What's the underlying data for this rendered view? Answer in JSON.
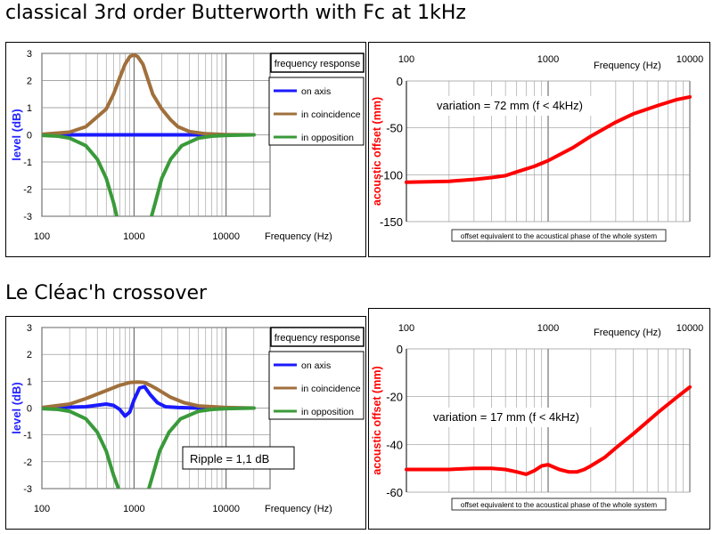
{
  "sections": [
    {
      "title": "classical 3rd order Butterworth with Fc at 1kHz",
      "annotation": "",
      "freq_chart": {
        "type": "line",
        "title": "frequency response",
        "ylabel": "level (dB)",
        "xlabel": "Frequency  (Hz)",
        "xscale": "log",
        "xlim": [
          100,
          30000
        ],
        "ylim": [
          -3,
          3
        ],
        "xticks": [
          "100",
          "1000",
          "10000"
        ],
        "yticks": [
          "3",
          "2",
          "1",
          "0",
          "-1",
          "-2",
          "-3"
        ],
        "grid": true,
        "legend_position": "top-right",
        "series": [
          {
            "name": "on axis",
            "color": "#1a1aff",
            "x": [
              100,
              200,
              500,
              1000,
              2000,
              5000,
              20000
            ],
            "y": [
              0,
              0,
              0,
              0,
              0,
              0,
              0
            ]
          },
          {
            "name": "in coincidence",
            "color": "#a0703c",
            "x": [
              100,
              200,
              300,
              500,
              600,
              700,
              800,
              900,
              1000,
              1100,
              1250,
              1400,
              1600,
              2000,
              2500,
              3000,
              4000,
              6000,
              10000,
              20000
            ],
            "y": [
              0.02,
              0.1,
              0.3,
              0.95,
              1.5,
              2.1,
              2.6,
              2.88,
              2.95,
              2.88,
              2.6,
              2.1,
              1.5,
              0.95,
              0.55,
              0.3,
              0.12,
              0.04,
              0.01,
              0
            ]
          },
          {
            "name": "in opposition",
            "color": "#3a9a3a",
            "x": [
              100,
              150,
              200,
              300,
              400,
              500,
              600,
              650
            ],
            "y": [
              -0.02,
              -0.05,
              -0.12,
              -0.4,
              -0.9,
              -1.6,
              -2.5,
              -3
            ]
          },
          {
            "name": "",
            "color": "#3a9a3a",
            "x": [
              1550,
              1700,
              2000,
              2500,
              3300,
              5000,
              7000,
              10000,
              20000
            ],
            "y": [
              -3,
              -2.5,
              -1.6,
              -0.9,
              -0.4,
              -0.12,
              -0.05,
              -0.02,
              0
            ]
          }
        ]
      },
      "offset_chart": {
        "type": "line",
        "ylabel": "acoustic offset (mm)",
        "xlabel": "Frequency  (Hz)",
        "xscale": "log",
        "xlim": [
          100,
          10000
        ],
        "ylim": [
          -150,
          0
        ],
        "xticks": [
          "100",
          "1000",
          "10000"
        ],
        "yticks": [
          "0",
          "-50",
          "-100",
          "-150"
        ],
        "annotation": "variation =  72 mm  (f < 4kHz)",
        "caption": "offset equivalent to the acoustical phase of the whole system",
        "series": [
          {
            "name": "",
            "color": "#ff0000",
            "x": [
              100,
              200,
              300,
              400,
              500,
              600,
              800,
              1000,
              1500,
              2000,
              3000,
              4000,
              6000,
              8000,
              10000
            ],
            "y": [
              -108,
              -107,
              -105,
              -103,
              -101,
              -97,
              -91,
              -85,
              -71,
              -59,
              -44,
              -35,
              -26,
              -20,
              -17
            ]
          }
        ]
      }
    },
    {
      "title": "Le Cléac'h crossover",
      "annotation": "Ripple = 1,1 dB",
      "freq_chart": {
        "type": "line",
        "title": "frequency response",
        "ylabel": "level (dB)",
        "xlabel": "Frequency  (Hz)",
        "xscale": "log",
        "xlim": [
          100,
          30000
        ],
        "ylim": [
          -3,
          3
        ],
        "xticks": [
          "100",
          "1000",
          "10000"
        ],
        "yticks": [
          "3",
          "2",
          "1",
          "0",
          "-1",
          "-2",
          "-3"
        ],
        "grid": true,
        "legend_position": "top-right",
        "series": [
          {
            "name": "on axis",
            "color": "#1a1aff",
            "x": [
              100,
              300,
              500,
              600,
              700,
              800,
              900,
              1000,
              1150,
              1300,
              1500,
              1800,
              2200,
              3000,
              5000,
              20000
            ],
            "y": [
              0,
              0.05,
              0.15,
              0.1,
              -0.05,
              -0.3,
              -0.15,
              0.3,
              0.75,
              0.8,
              0.5,
              0.2,
              0.05,
              0.02,
              0,
              0
            ]
          },
          {
            "name": "in coincidence",
            "color": "#a0703c",
            "x": [
              100,
              200,
              300,
              500,
              700,
              900,
              1100,
              1300,
              1500,
              1800,
              2500,
              3500,
              5000,
              10000,
              20000
            ],
            "y": [
              0.02,
              0.15,
              0.35,
              0.65,
              0.85,
              0.95,
              0.97,
              0.95,
              0.85,
              0.7,
              0.4,
              0.2,
              0.08,
              0.02,
              0
            ]
          },
          {
            "name": "in opposition",
            "color": "#3a9a3a",
            "x": [
              100,
              150,
              200,
              300,
              400,
              500,
              600,
              680
            ],
            "y": [
              -0.02,
              -0.05,
              -0.12,
              -0.4,
              -0.9,
              -1.6,
              -2.5,
              -3
            ]
          },
          {
            "name": "",
            "color": "#3a9a3a",
            "x": [
              1450,
              1600,
              1900,
              2400,
              3200,
              5000,
              7000,
              10000,
              20000
            ],
            "y": [
              -3,
              -2.5,
              -1.6,
              -0.9,
              -0.4,
              -0.12,
              -0.05,
              -0.02,
              0
            ]
          }
        ]
      },
      "offset_chart": {
        "type": "line",
        "ylabel": "acoustic offset (mm)",
        "xlabel": "Frequency  (Hz)",
        "xscale": "log",
        "xlim": [
          100,
          10000
        ],
        "ylim": [
          -60,
          0
        ],
        "xticks": [
          "100",
          "1000",
          "10000"
        ],
        "yticks": [
          "0",
          "-20",
          "-40",
          "-60"
        ],
        "annotation": "variation =  17 mm   (f < 4kHz)",
        "caption": "offset equivalent to the acoustical phase of the whole system",
        "series": [
          {
            "name": "",
            "color": "#ff0000",
            "x": [
              100,
              200,
              300,
              400,
              500,
              600,
              700,
              800,
              900,
              1000,
              1200,
              1400,
              1600,
              1800,
              2000,
              2500,
              3000,
              4000,
              6000,
              8000,
              10000
            ],
            "y": [
              -50.5,
              -50.5,
              -50,
              -50,
              -50.5,
              -51.5,
              -52.5,
              -51,
              -49,
              -48.5,
              -50.5,
              -51.5,
              -51.5,
              -50.5,
              -49,
              -45.5,
              -41.5,
              -35.5,
              -26.5,
              -20.5,
              -16
            ]
          }
        ]
      }
    }
  ]
}
